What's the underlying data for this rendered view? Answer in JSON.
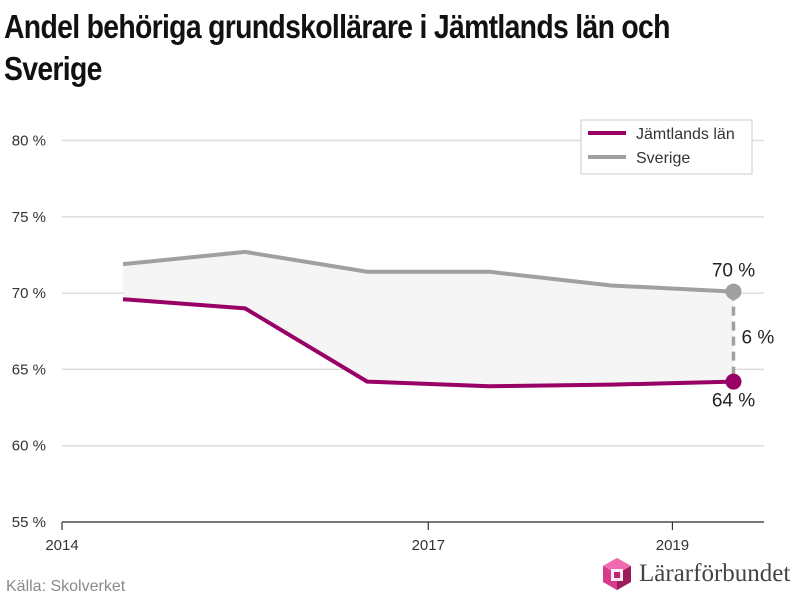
{
  "title": "Andel behöriga grundskollärare i Jämtlands län och Sverige",
  "source": "Källa: Skolverket",
  "logo": {
    "text": "Lärarförbundet",
    "icon": "lararforbundet-logo-icon"
  },
  "colors": {
    "jamtland": "#990066",
    "sverige": "#a0a0a0",
    "band": "#f5f5f5",
    "grid": "#dddddd"
  },
  "chart_data": {
    "type": "line",
    "x_tick_labels": [
      "2014",
      "2017",
      "2019"
    ],
    "x_ticks": [
      2014,
      2017,
      2019
    ],
    "xlim": [
      2014,
      2019.75
    ],
    "y_tick_labels": [
      "55 %",
      "60 %",
      "65 %",
      "70 %",
      "75 %",
      "80 %"
    ],
    "y_ticks": [
      55,
      60,
      65,
      70,
      75,
      80
    ],
    "ylim": [
      55,
      82
    ],
    "grid": "horizontal",
    "legend_position": "top-right",
    "series": [
      {
        "name": "Jämtlands län",
        "x": [
          2014.5,
          2015.5,
          2016.5,
          2017.5,
          2018.5,
          2019.5
        ],
        "values": [
          69.6,
          69.0,
          64.2,
          63.9,
          64.0,
          64.2
        ]
      },
      {
        "name": "Sverige",
        "x": [
          2014.5,
          2015.5,
          2016.5,
          2017.5,
          2018.5,
          2019.5
        ],
        "values": [
          71.9,
          72.7,
          71.4,
          71.4,
          70.5,
          70.1
        ]
      }
    ],
    "annotations": {
      "sverige_end": "70 %",
      "jamtland_end": "64 %",
      "difference": "6 %"
    }
  }
}
